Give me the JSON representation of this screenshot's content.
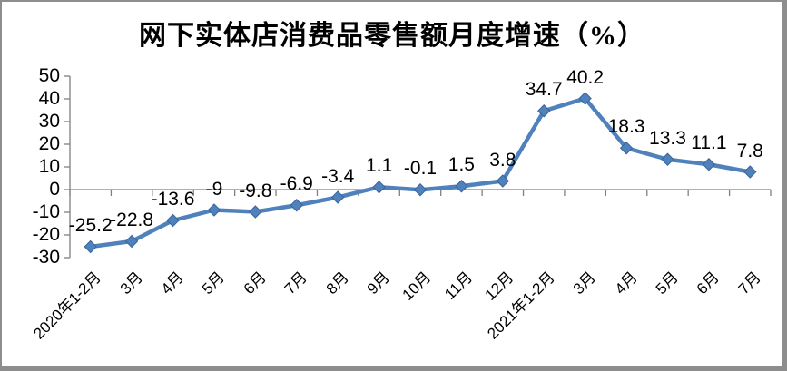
{
  "chart_data": {
    "type": "line",
    "title": "网下实体店消费品零售额月度增速（%）",
    "categories": [
      "2020年1-2月",
      "3月",
      "4月",
      "5月",
      "6月",
      "7月",
      "8月",
      "9月",
      "10月",
      "11月",
      "12月",
      "2021年1-2月",
      "3月",
      "4月",
      "5月",
      "6月",
      "7月"
    ],
    "values": [
      -25.2,
      -22.8,
      -13.6,
      -9,
      -9.8,
      -6.9,
      -3.4,
      1.1,
      -0.1,
      1.5,
      3.8,
      34.7,
      40.2,
      18.3,
      13.3,
      11.1,
      7.8
    ],
    "data_labels": [
      "-25.2",
      "-22.8",
      "-13.6",
      "-9",
      "-9.8",
      "-6.9",
      "-3.4",
      "1.1",
      "-0.1",
      "1.5",
      "3.8",
      "34.7",
      "40.2",
      "18.3",
      "13.3",
      "11.1",
      "7.8"
    ],
    "ylim": [
      -30,
      50
    ],
    "ytick_step": 10,
    "yticks": [
      50,
      40,
      30,
      20,
      10,
      0,
      -10,
      -20,
      -30
    ],
    "grid": false,
    "legend": "none",
    "data_label_position": "above",
    "xlabel": "",
    "ylabel": "",
    "colors": {
      "line": "#4F81BD",
      "marker_fill": "#4F81BD",
      "marker_edge": "#3B6598",
      "axis": "#808080",
      "text": "#000000",
      "background": "#FFFFFF",
      "frame_border": "#8D8D8D"
    }
  }
}
